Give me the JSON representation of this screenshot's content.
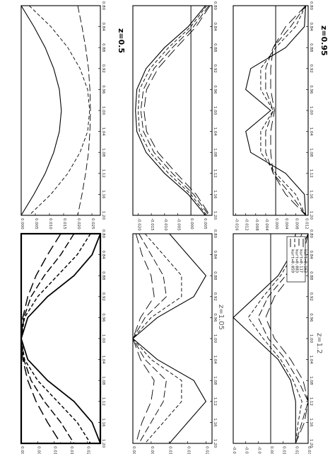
{
  "chart_data": [
    {
      "type": "line",
      "title": "z=0.5",
      "x": [
        0.8,
        0.84,
        0.88,
        0.92,
        0.96,
        1.0,
        1.04,
        1.08,
        1.12,
        1.16,
        1.2
      ],
      "y_ticks": [
        "0.000",
        "0.005",
        "0.010",
        "0.015",
        "0.020",
        "0.025"
      ],
      "x_ticks": [
        "0.80",
        "0.84",
        "0.88",
        "0.92",
        "0.96",
        "1.00",
        "1.04",
        "1.08",
        "1.12",
        "1.16",
        "1.20"
      ],
      "ylim": [
        0.0,
        0.028
      ],
      "series": [
        {
          "values": [
            0.0,
            0.0045,
            0.0085,
            0.0115,
            0.0135,
            0.0142,
            0.0135,
            0.0115,
            0.0085,
            0.0045,
            0.0
          ]
        },
        {
          "values": [
            0.0028,
            0.0105,
            0.0165,
            0.0208,
            0.0235,
            0.0242,
            0.0235,
            0.0208,
            0.0165,
            0.0105,
            0.0028
          ]
        },
        {
          "values": [
            0.02,
            0.0215,
            0.0228,
            0.0238,
            0.0243,
            0.0245,
            0.0243,
            0.0238,
            0.0228,
            0.0215,
            0.02
          ]
        }
      ]
    },
    {
      "type": "line",
      "title": "",
      "x": [
        0.8,
        0.84,
        0.88,
        0.92,
        0.96,
        1.0,
        1.04,
        1.08,
        1.12,
        1.16,
        1.2
      ],
      "y_ticks": [
        "-0.020",
        "-0.015",
        "-0.010",
        "-0.005",
        "0.000",
        "0.005"
      ],
      "x_ticks": [
        "0.80",
        "0.84",
        "0.88",
        "0.92",
        "0.96",
        "1.00",
        "1.04",
        "1.08",
        "1.12",
        "1.16",
        "1.20"
      ],
      "ylim": [
        -0.022,
        0.008
      ],
      "zero_line": 0.0,
      "series": [
        {
          "values": [
            0.0055,
            -0.001,
            -0.01,
            -0.017,
            -0.0205,
            -0.021,
            -0.0205,
            -0.017,
            -0.01,
            -0.001,
            0.0055
          ]
        },
        {
          "values": [
            0.006,
            0.0,
            -0.0085,
            -0.0155,
            -0.0195,
            -0.02,
            -0.0195,
            -0.0155,
            -0.0085,
            0.0,
            0.006
          ]
        },
        {
          "values": [
            0.0068,
            0.001,
            -0.007,
            -0.014,
            -0.018,
            -0.019,
            -0.018,
            -0.014,
            -0.007,
            0.001,
            0.0068
          ]
        },
        {
          "values": [
            0.0072,
            0.002,
            -0.0055,
            -0.0125,
            -0.0168,
            -0.0178,
            -0.0168,
            -0.0125,
            -0.0055,
            0.002,
            0.0072
          ]
        }
      ]
    },
    {
      "type": "line",
      "title": "z=0.95",
      "x": [
        0.8,
        0.84,
        0.88,
        0.92,
        0.96,
        1.0,
        1.04,
        1.08,
        1.12,
        1.16,
        1.2
      ],
      "y_ticks": [
        "-0.016",
        "-0.012",
        "-0.008",
        "-0.004",
        "0.000",
        "0.004",
        "0.008",
        "0.012"
      ],
      "x_ticks": [
        "0.80",
        "0.84",
        "0.88",
        "0.92",
        "0.96",
        "1.00",
        "1.04",
        "1.08",
        "1.12",
        "1.16",
        "1.20"
      ],
      "ylim": [
        -0.017,
        0.013
      ],
      "zero_line": 0.0,
      "series": [
        {
          "values": [
            0.012,
            0.0115,
            0.004,
            -0.01,
            -0.012,
            -0.002,
            -0.012,
            -0.01,
            0.004,
            0.0115,
            0.012
          ]
        },
        {
          "values": [
            0.012,
            0.008,
            0.0,
            -0.006,
            -0.006,
            -0.001,
            -0.006,
            -0.006,
            0.0,
            0.008,
            0.012
          ]
        },
        {
          "values": [
            0.012,
            0.006,
            -0.001,
            -0.004,
            -0.004,
            -0.001,
            -0.004,
            -0.004,
            -0.001,
            0.006,
            0.012
          ]
        },
        {
          "values": [
            0.012,
            0.004,
            -0.001,
            -0.002,
            -0.002,
            -0.0005,
            -0.002,
            -0.002,
            -0.001,
            0.004,
            0.012
          ]
        }
      ]
    },
    {
      "type": "line",
      "title": "",
      "x": [
        0.8,
        0.84,
        0.88,
        0.92,
        0.96,
        1.0,
        1.04,
        1.08,
        1.12,
        1.16,
        1.2
      ],
      "y_ticks": [
        "0.000",
        "0.005",
        "0.010",
        "0.015",
        "0.020"
      ],
      "x_ticks": [
        "0.80",
        "0.84",
        "0.88",
        "0.92",
        "0.96",
        "1.00",
        "1.04",
        "1.08",
        "1.12",
        "1.16",
        "1.20"
      ],
      "ylim": [
        0.0,
        0.024
      ],
      "zero_line": 0.0,
      "series": [
        {
          "values": [
            0.024,
            0.0215,
            0.016,
            0.008,
            0.002,
            0.0,
            0.002,
            0.008,
            0.016,
            0.0215,
            0.024
          ]
        },
        {
          "values": [
            0.021,
            0.017,
            0.011,
            0.005,
            0.001,
            0.0,
            0.001,
            0.005,
            0.011,
            0.017,
            0.021
          ]
        },
        {
          "values": [
            0.016,
            0.012,
            0.007,
            0.003,
            0.0008,
            0.0,
            0.0008,
            0.003,
            0.007,
            0.012,
            0.016
          ]
        },
        {
          "values": [
            0.012,
            0.008,
            0.0045,
            0.002,
            0.0005,
            0.0,
            0.0005,
            0.002,
            0.0045,
            0.008,
            0.012
          ]
        }
      ]
    },
    {
      "type": "line",
      "title": "z=1.05",
      "x": [
        0.8,
        0.84,
        0.88,
        0.92,
        0.96,
        1.0,
        1.04,
        1.08,
        1.12,
        1.16,
        1.2
      ],
      "y_ticks": [
        "0.000",
        "0.006",
        "0.012",
        "0.018",
        "0.024"
      ],
      "x_ticks": [
        "0.80",
        "0.84",
        "0.88",
        "0.92",
        "0.96",
        "1.00",
        "1.04",
        "1.08",
        "1.12",
        "1.16",
        "1.20"
      ],
      "ylim": [
        0.0,
        0.026
      ],
      "zero_line": 0.0,
      "series": [
        {
          "values": [
            0.012,
            0.018,
            0.024,
            0.02,
            0.008,
            0.0,
            0.008,
            0.02,
            0.024,
            0.018,
            0.012
          ]
        },
        {
          "values": [
            0.004,
            0.01,
            0.016,
            0.016,
            0.006,
            0.0,
            0.006,
            0.016,
            0.016,
            0.01,
            0.004
          ]
        },
        {
          "values": [
            0.002,
            0.006,
            0.01,
            0.011,
            0.004,
            0.0,
            0.004,
            0.011,
            0.01,
            0.006,
            0.002
          ]
        },
        {
          "values": [
            0.001,
            0.003,
            0.006,
            0.007,
            0.0025,
            0.0,
            0.0025,
            0.007,
            0.006,
            0.003,
            0.001
          ]
        }
      ]
    },
    {
      "type": "line",
      "title": "z=1.2",
      "x": [
        0.8,
        0.84,
        0.88,
        0.92,
        0.96,
        1.0,
        1.04,
        1.08,
        1.12,
        1.16,
        1.2
      ],
      "y_ticks": [
        "-0.03",
        "-0.02",
        "-0.01",
        "0.00",
        "0.01",
        "0.02",
        "0.03"
      ],
      "x_ticks": [
        "0.80",
        "0.84",
        "0.88",
        "0.92",
        "0.96",
        "1.00",
        "1.04",
        "1.08",
        "1.12",
        "1.16",
        "1.20"
      ],
      "ylim": [
        -0.03,
        0.03
      ],
      "zero_line": 0.0,
      "legend": [
        "kurt=0.059",
        "kurt=0.083",
        "kurt=0.117",
        "kurt=0.163"
      ],
      "legend_position": "top-right",
      "series": [
        {
          "name": "kurt=0.059",
          "values": [
            0.02,
            0.016,
            0.006,
            -0.012,
            -0.03,
            -0.012,
            0.006,
            0.016,
            0.02,
            0.02,
            0.02
          ]
        },
        {
          "name": "kurt=0.083",
          "values": [
            0.025,
            0.018,
            0.008,
            -0.006,
            -0.018,
            -0.006,
            0.008,
            0.018,
            0.025,
            0.022,
            0.02
          ]
        },
        {
          "name": "kurt=0.117",
          "values": [
            0.03,
            0.022,
            0.012,
            -0.002,
            -0.01,
            -0.002,
            0.012,
            0.022,
            0.03,
            0.025,
            0.02
          ]
        },
        {
          "name": "kurt=0.163",
          "values": [
            0.03,
            0.026,
            0.016,
            0.003,
            -0.004,
            0.003,
            0.016,
            0.026,
            0.03,
            0.027,
            0.02
          ]
        }
      ]
    }
  ]
}
